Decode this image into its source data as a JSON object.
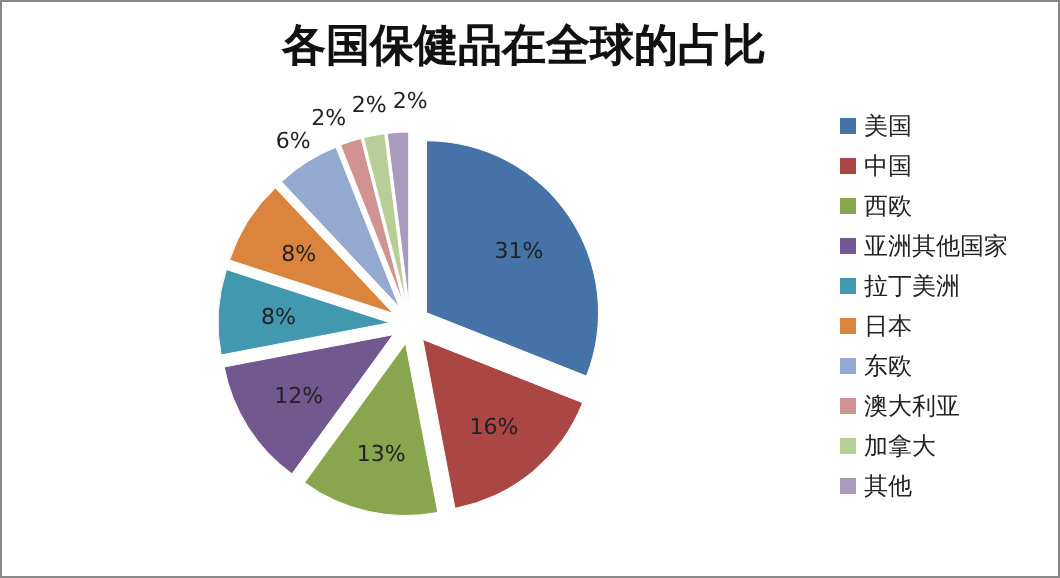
{
  "chart_data": {
    "type": "pie",
    "title": "各国保健品在全球的占比",
    "categories": [
      "美国",
      "中国",
      "西欧",
      "亚洲其他国家",
      "拉丁美洲",
      "日本",
      "东欧",
      "澳大利亚",
      "加拿大",
      "其他"
    ],
    "values": [
      31,
      16,
      13,
      12,
      8,
      8,
      6,
      2,
      2,
      2
    ],
    "colors": [
      "#4572a7",
      "#aa4643",
      "#89a54e",
      "#71588f",
      "#4198af",
      "#db843d",
      "#93a9cf",
      "#d19392",
      "#b9cd96",
      "#a99bbd"
    ],
    "value_labels": [
      "31%",
      "16%",
      "13%",
      "12%",
      "8%",
      "8%",
      "6%",
      "2%",
      "2%",
      "2%"
    ],
    "legend": "right"
  }
}
